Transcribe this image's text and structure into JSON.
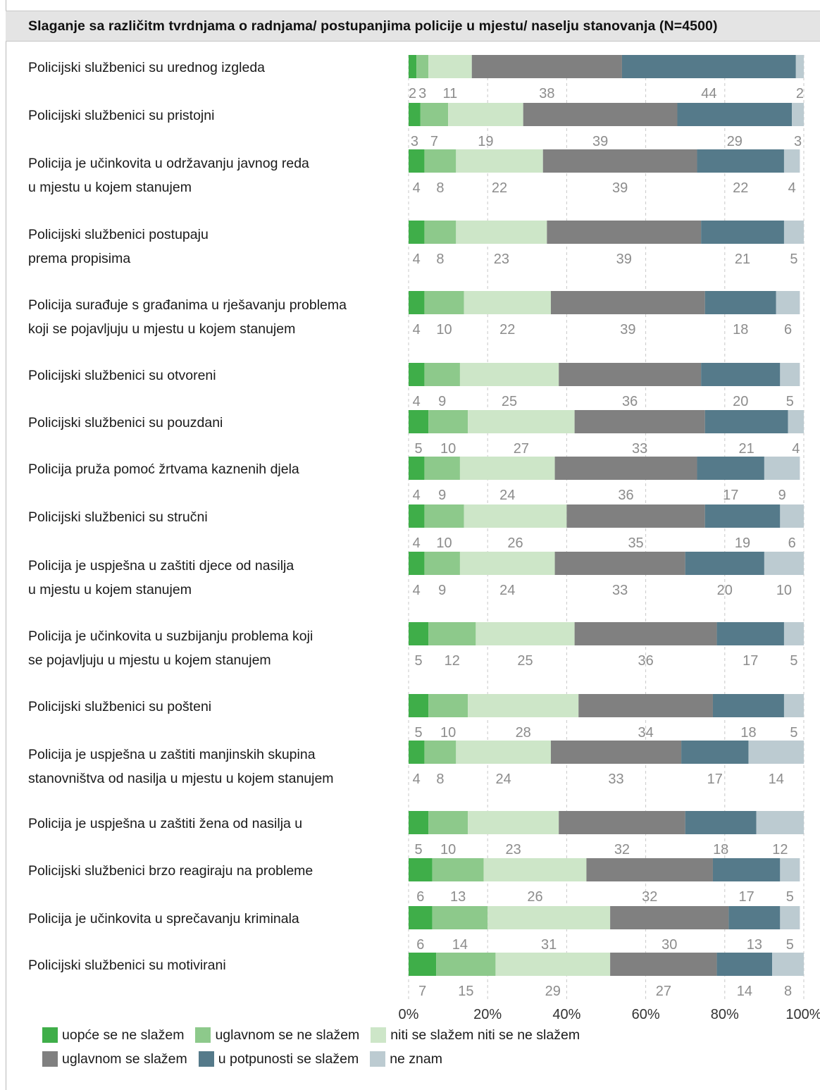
{
  "title": "Slaganje sa različitm tvrdnjama o radnjama/ postupanjima policije u mjestu/ naselju stanovanja (N=4500)",
  "colors": {
    "series": [
      "#3fae49",
      "#8dc98b",
      "#cde6c8",
      "#808080",
      "#557a8a",
      "#bccbd1"
    ]
  },
  "chart_data": {
    "type": "bar",
    "orientation": "horizontal",
    "stacked": true,
    "xlim": [
      0,
      100
    ],
    "x_ticks": [
      "0%",
      "20%",
      "40%",
      "60%",
      "80%",
      "100%"
    ],
    "grid": "vertical dashed",
    "legend_position": "bottom",
    "categories": [
      [
        "Policijski službenici su urednog izgleda"
      ],
      [
        "Policijski službenici su pristojni"
      ],
      [
        "Policija je učinkovita u održavanju javnog reda",
        "u mjestu u kojem stanujem"
      ],
      [
        "Policijski službenici postupaju",
        "prema propisima"
      ],
      [
        "Policija surađuje s građanima u rješavanju problema",
        "koji se pojavljuju u mjestu u kojem stanujem"
      ],
      [
        "Policijski službenici su otvoreni"
      ],
      [
        "Policijski službenici su pouzdani"
      ],
      [
        "Policija pruža pomoć žrtvama kaznenih djela"
      ],
      [
        "Policijski službenici su stručni"
      ],
      [
        "Policija je uspješna u zaštiti djece od nasilja",
        "u mjestu u kojem stanujem"
      ],
      [
        "Policija je učinkovita u suzbijanju problema koji",
        "se pojavljuju u mjestu u kojem stanujem"
      ],
      [
        "Policijski službenici su pošteni"
      ],
      [
        "Policija je uspješna u zaštiti manjinskih skupina",
        "stanovništva od nasilja u mjestu u kojem stanujem"
      ],
      [
        "Policija je uspješna u zaštiti žena od nasilja u"
      ],
      [
        "Policijski službenici brzo reagiraju na probleme"
      ],
      [
        "Policija je učinkovita u sprečavanju kriminala"
      ],
      [
        "Policijski službenici su motivirani"
      ]
    ],
    "series": [
      {
        "name": "uopće se ne slažem",
        "values": [
          2,
          3,
          4,
          4,
          4,
          4,
          5,
          4,
          4,
          4,
          5,
          5,
          4,
          5,
          6,
          6,
          7
        ]
      },
      {
        "name": "uglavnom se ne slažem",
        "values": [
          3,
          7,
          8,
          8,
          10,
          9,
          10,
          9,
          10,
          9,
          12,
          10,
          8,
          10,
          13,
          14,
          15
        ]
      },
      {
        "name": "niti se slažem niti se ne slažem",
        "values": [
          11,
          19,
          22,
          23,
          22,
          25,
          27,
          24,
          26,
          24,
          25,
          28,
          24,
          23,
          26,
          31,
          29
        ]
      },
      {
        "name": "uglavnom se slažem",
        "values": [
          38,
          39,
          39,
          39,
          39,
          36,
          33,
          36,
          35,
          33,
          36,
          34,
          33,
          32,
          32,
          30,
          27
        ]
      },
      {
        "name": "u potpunosti se slažem",
        "values": [
          44,
          29,
          22,
          21,
          18,
          20,
          21,
          17,
          19,
          20,
          17,
          18,
          17,
          18,
          17,
          13,
          14
        ]
      },
      {
        "name": "ne znam",
        "values": [
          2,
          3,
          4,
          5,
          6,
          5,
          4,
          9,
          6,
          10,
          5,
          5,
          14,
          12,
          5,
          5,
          8
        ]
      }
    ]
  },
  "legend_rows": [
    [
      0,
      1,
      2
    ],
    [
      3,
      4,
      5
    ]
  ]
}
